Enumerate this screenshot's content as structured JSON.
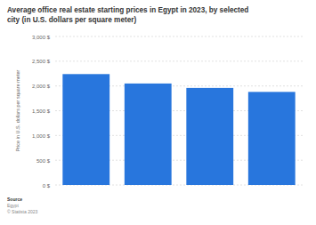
{
  "chart_data": {
    "type": "bar",
    "title": "Average office real estate starting prices in Egypt in 2023, by selected city (in U.S. dollars per square meter)",
    "ylabel": "Price in U.S. dollars per square meter",
    "categories": [
      null,
      null,
      null,
      null
    ],
    "values": [
      2240,
      2050,
      1960,
      1880
    ],
    "color": "#2876dd",
    "ylim": [
      0,
      3000
    ],
    "yticks": [
      {
        "value": 0,
        "label": "0 $"
      },
      {
        "value": 500,
        "label": "500 $"
      },
      {
        "value": 1000,
        "label": "1,000 $"
      },
      {
        "value": 1500,
        "label": "1,500 $"
      },
      {
        "value": 2000,
        "label": "2,000 $"
      },
      {
        "value": 2500,
        "label": "2,500 $"
      },
      {
        "value": 3000,
        "label": "3,000 $"
      }
    ],
    "grid": true,
    "source": [
      "Source",
      "Egypt",
      "© Statista 2023"
    ]
  }
}
